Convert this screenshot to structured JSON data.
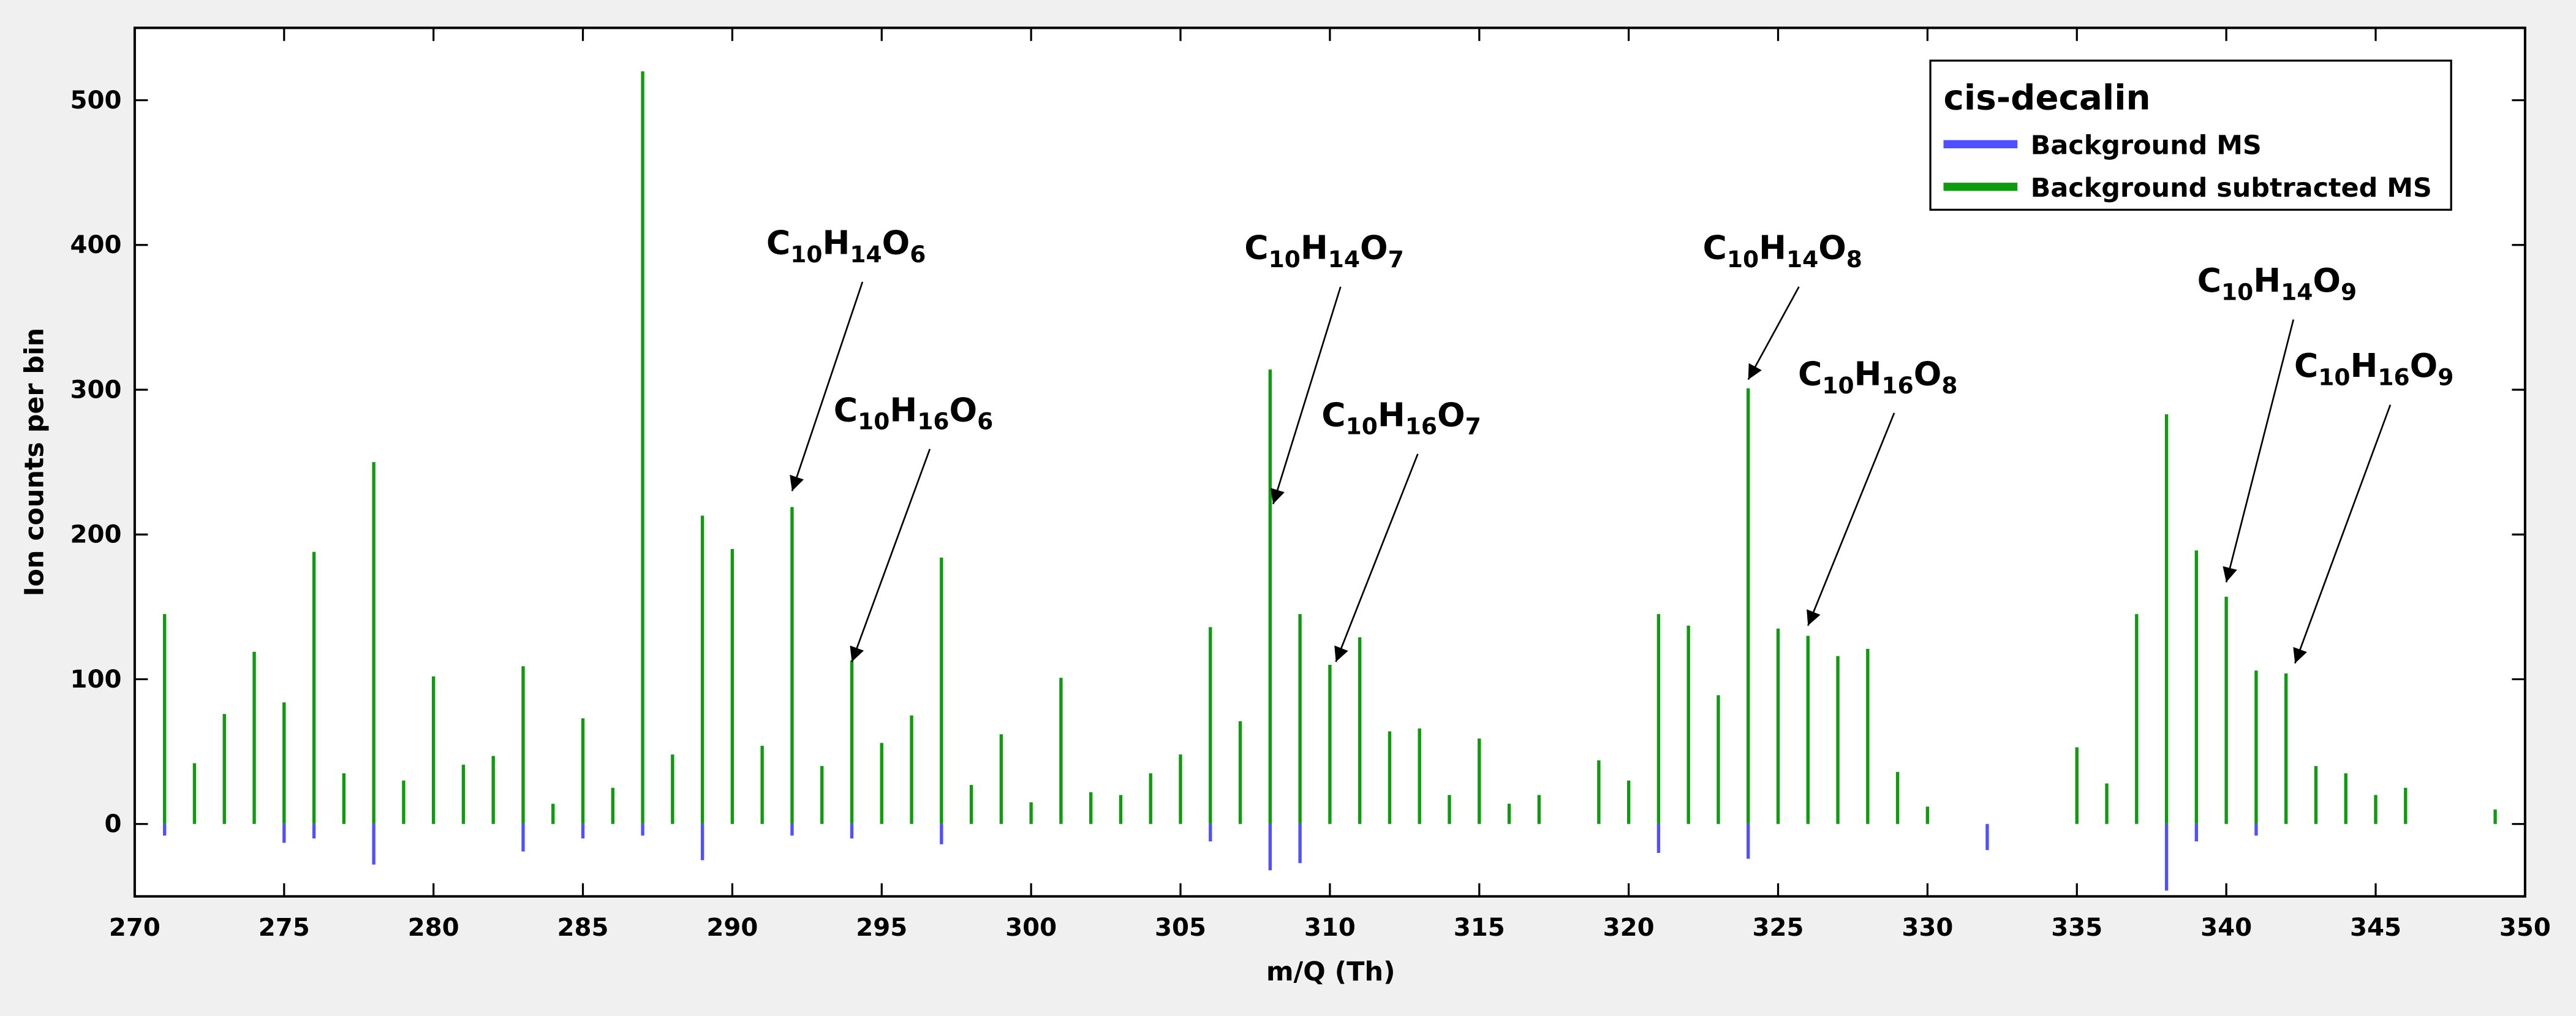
{
  "chart_data": {
    "type": "stem",
    "xlabel": "m/Q (Th)",
    "ylabel": "Ion counts per bin",
    "xlim": [
      270,
      350
    ],
    "xticks": [
      270,
      275,
      280,
      285,
      290,
      295,
      300,
      305,
      310,
      315,
      320,
      325,
      330,
      335,
      340,
      345,
      350
    ],
    "ylim": [
      -50,
      550
    ],
    "yticks": [
      0,
      100,
      200,
      300,
      400,
      500
    ],
    "legend": {
      "title": "cis-decalin",
      "loc": "upper right"
    },
    "series": [
      {
        "name": "Background MS",
        "color": "#5050ff",
        "x": [
          271,
          275,
          276,
          278,
          283,
          285,
          287,
          289,
          292,
          294,
          297,
          306,
          308,
          309,
          321,
          324,
          332,
          338,
          339,
          341
        ],
        "values": [
          -8,
          -13,
          -10,
          -28,
          -19,
          -10,
          -8,
          -25,
          -8,
          -10,
          -14,
          -12,
          -32,
          -27,
          -20,
          -24,
          -18,
          -46,
          -12,
          -8
        ]
      },
      {
        "name": "Background subtracted MS",
        "color": "#109a10",
        "x": [
          271,
          272,
          273,
          274,
          275,
          276,
          277,
          278,
          279,
          280,
          281,
          282,
          283,
          284,
          285,
          286,
          287,
          288,
          289,
          290,
          291,
          292,
          293,
          294,
          295,
          296,
          297,
          298,
          299,
          300,
          301,
          302,
          303,
          304,
          305,
          306,
          307,
          308,
          309,
          310,
          311,
          312,
          313,
          314,
          315,
          316,
          317,
          319,
          320,
          321,
          322,
          323,
          324,
          325,
          326,
          327,
          328,
          329,
          330,
          335,
          336,
          337,
          338,
          339,
          340,
          341,
          342,
          343,
          344,
          345,
          346,
          349
        ],
        "values": [
          145,
          42,
          76,
          119,
          84,
          188,
          35,
          250,
          30,
          102,
          41,
          47,
          109,
          14,
          73,
          25,
          520,
          48,
          213,
          190,
          54,
          219,
          40,
          113,
          56,
          75,
          184,
          27,
          62,
          15,
          101,
          22,
          20,
          35,
          48,
          136,
          71,
          314,
          145,
          110,
          129,
          64,
          66,
          20,
          59,
          14,
          20,
          44,
          30,
          145,
          137,
          89,
          301,
          135,
          130,
          116,
          121,
          36,
          12,
          53,
          28,
          145,
          283,
          189,
          157,
          106,
          104,
          40,
          35,
          20,
          25,
          10
        ]
      }
    ],
    "annotations": [
      {
        "parts": [
          "C",
          "10",
          "H",
          "14",
          "O",
          "6"
        ],
        "xy": [
          292,
          230
        ]
      },
      {
        "parts": [
          "C",
          "10",
          "H",
          "16",
          "O",
          "6"
        ],
        "xy": [
          294,
          112
        ]
      },
      {
        "parts": [
          "C",
          "10",
          "H",
          "14",
          "O",
          "7"
        ],
        "xy": [
          308.1,
          221
        ]
      },
      {
        "parts": [
          "C",
          "10",
          "H",
          "16",
          "O",
          "7"
        ],
        "xy": [
          310.2,
          112
        ]
      },
      {
        "parts": [
          "C",
          "10",
          "H",
          "14",
          "O",
          "8"
        ],
        "xy": [
          324,
          307
        ]
      },
      {
        "parts": [
          "C",
          "10",
          "H",
          "16",
          "O",
          "8"
        ],
        "xy": [
          326,
          137
        ]
      },
      {
        "parts": [
          "C",
          "10",
          "H",
          "14",
          "O",
          "9"
        ],
        "xy": [
          340,
          167
        ]
      },
      {
        "parts": [
          "C",
          "10",
          "H",
          "16",
          "O",
          "9"
        ],
        "xy": [
          342.3,
          111
        ]
      }
    ]
  }
}
